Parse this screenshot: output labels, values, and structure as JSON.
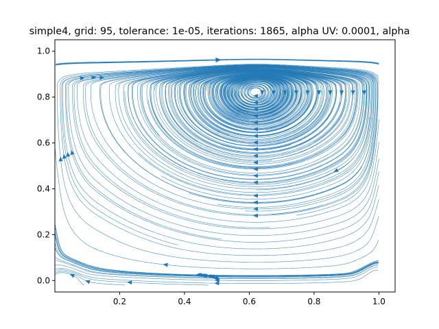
{
  "chart_data": {
    "type": "streamplot",
    "title": "simple4, grid: 95, tolerance: 1e-05, iterations: 1865, alpha UV: 0.0001, alpha",
    "xlabel": "",
    "ylabel": "",
    "xlim": [
      0.0,
      1.05
    ],
    "ylim": [
      -0.05,
      1.05
    ],
    "x_ticks": [
      "0.2",
      "0.4",
      "0.6",
      "0.8",
      "1.0"
    ],
    "y_ticks": [
      "0.0",
      "0.2",
      "0.4",
      "0.6",
      "0.8",
      "1.0"
    ],
    "grid": false,
    "line_color": "#1f77b4",
    "vortices": [
      {
        "name": "primary",
        "center": [
          0.62,
          0.82
        ]
      },
      {
        "name": "bottom-left",
        "center": [
          0.04,
          0.03
        ]
      },
      {
        "name": "bottom-right",
        "center": [
          0.975,
          0.05
        ]
      }
    ]
  }
}
